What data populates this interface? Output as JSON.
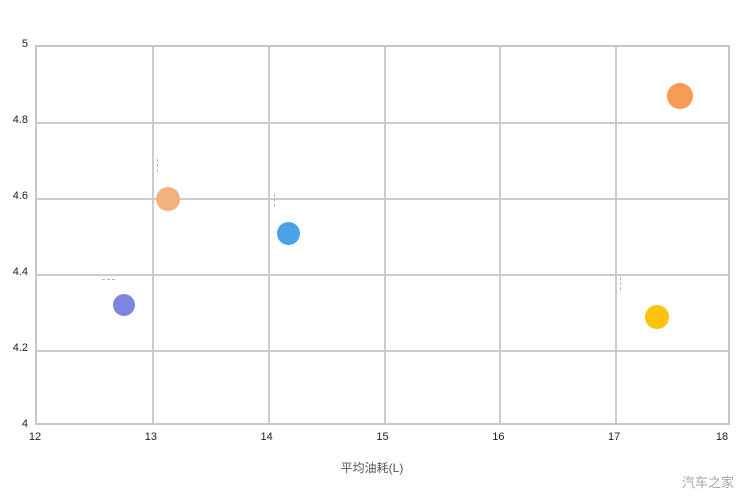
{
  "watermark": "汽车之家",
  "chart_data": {
    "type": "scatter",
    "title": "",
    "xlabel": "平均油耗(L)",
    "ylabel": "",
    "xlim": [
      12,
      18
    ],
    "ylim": [
      4,
      5
    ],
    "x_ticks": [
      12,
      13,
      14,
      15,
      16,
      17,
      18
    ],
    "y_ticks": [
      4,
      4.2,
      4.4,
      4.6,
      4.8,
      5
    ],
    "grid": true,
    "legend": "none",
    "points": [
      {
        "x": 12.75,
        "y": 4.32,
        "color": "#7d85e0",
        "size": 22
      },
      {
        "x": 13.13,
        "y": 4.6,
        "color": "#f2b27e",
        "size": 24
      },
      {
        "x": 14.17,
        "y": 4.51,
        "color": "#4ba1e8",
        "size": 23
      },
      {
        "x": 17.35,
        "y": 4.29,
        "color": "#fcc40e",
        "size": 24
      },
      {
        "x": 17.55,
        "y": 4.87,
        "color": "#f59d55",
        "size": 26
      }
    ],
    "annotations": [
      {
        "x": 12.56,
        "y": 4.39,
        "orientation": "h"
      },
      {
        "x": 13.04,
        "y": 4.67,
        "orientation": "v"
      },
      {
        "x": 14.05,
        "y": 4.58,
        "orientation": "v"
      },
      {
        "x": 17.03,
        "y": 4.36,
        "orientation": "v"
      }
    ]
  }
}
